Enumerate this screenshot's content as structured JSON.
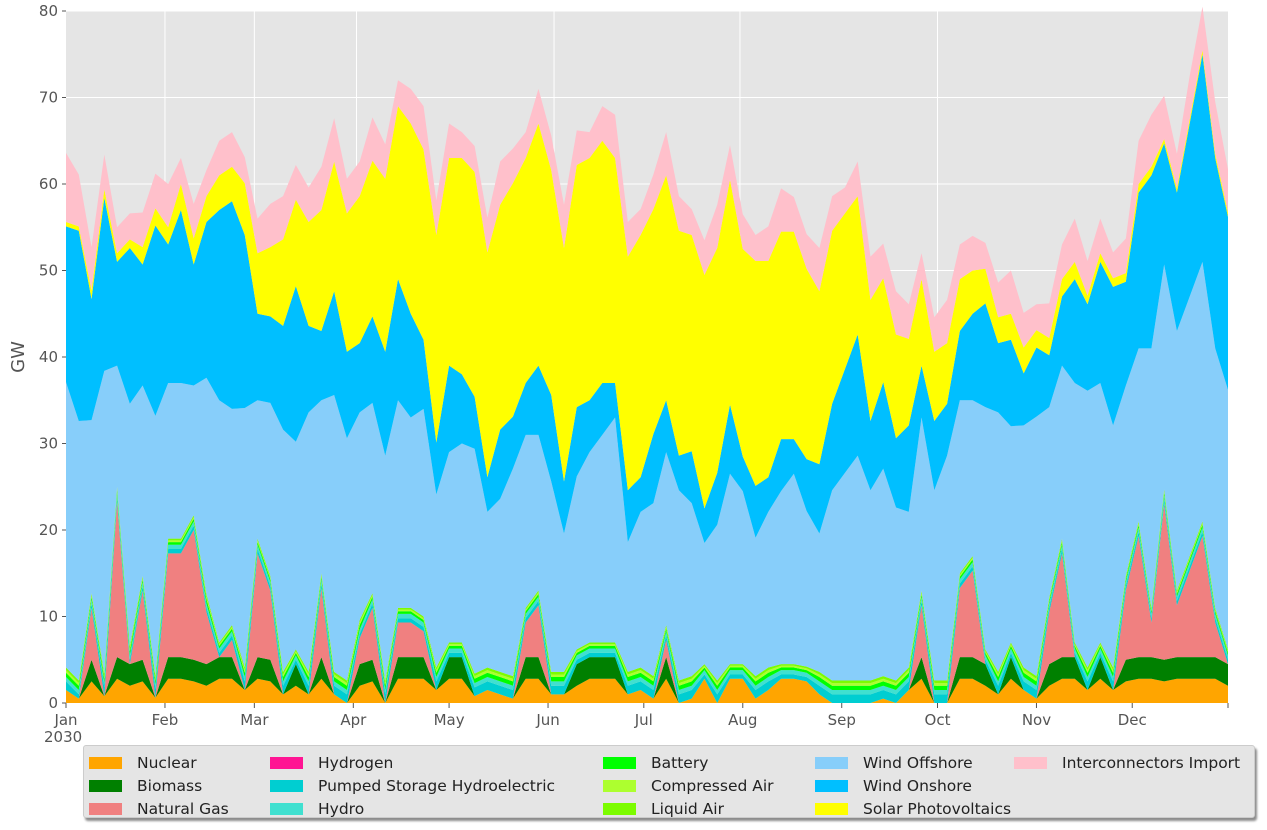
{
  "chart_data": {
    "type": "area",
    "stacked": true,
    "title": "",
    "xlabel": "",
    "ylabel": "GW",
    "ylim": [
      0,
      80
    ],
    "yticks": [
      0,
      10,
      20,
      30,
      40,
      50,
      60,
      70,
      80
    ],
    "x_range": [
      "2030-01-01",
      "2030-12-31"
    ],
    "xtick_labels": [
      "Jan",
      "Feb",
      "Mar",
      "Apr",
      "May",
      "Jun",
      "Jul",
      "Aug",
      "Sep",
      "Oct",
      "Nov",
      "Dec"
    ],
    "year_label": "2030",
    "grid": true,
    "legend_position": "bottom",
    "series": [
      {
        "name": "Nuclear",
        "color": "#ffa500",
        "values": [
          1.5,
          0.5,
          2.5,
          0.8,
          2.8,
          2.0,
          2.5,
          0.6,
          2.8,
          2.8,
          2.5,
          2.0,
          2.8,
          2.8,
          1.5,
          2.8,
          2.5,
          1.0,
          2.0,
          1.0,
          2.8,
          1.0,
          0.0,
          2.0,
          2.5,
          0.0,
          2.8,
          2.8,
          2.8,
          1.5,
          2.8,
          2.8,
          0.8,
          1.5,
          1.0,
          0.5,
          2.8,
          2.8,
          1.0,
          1.0,
          2.0,
          2.8,
          2.8,
          2.8,
          1.0,
          1.5,
          0.5,
          2.8,
          0.0,
          0.5,
          2.8,
          0.0,
          2.8,
          2.8,
          0.5,
          1.5,
          2.8,
          2.8,
          2.5,
          1.0,
          0.0,
          0.0,
          0.0,
          0.0,
          0.5,
          0.0,
          1.5,
          2.8,
          0.0,
          0.0,
          2.8,
          2.8,
          2.0,
          1.0,
          2.8,
          1.5,
          0.5,
          2.0,
          2.8,
          2.8,
          1.5,
          2.8,
          1.5,
          2.5,
          2.8,
          2.8,
          2.5,
          2.8,
          2.8,
          2.8,
          2.8,
          2.0
        ]
      },
      {
        "name": "Biomass",
        "color": "#008000",
        "values": [
          0.0,
          0.0,
          2.5,
          0.0,
          2.5,
          2.5,
          2.5,
          0.0,
          2.5,
          2.5,
          2.5,
          2.5,
          2.5,
          2.5,
          0.0,
          2.5,
          2.5,
          0.0,
          2.5,
          0.0,
          2.5,
          0.0,
          0.0,
          2.5,
          2.5,
          0.0,
          2.5,
          2.5,
          2.5,
          0.0,
          2.5,
          2.5,
          0.0,
          0.0,
          0.0,
          0.0,
          2.5,
          2.5,
          0.0,
          0.0,
          2.5,
          2.5,
          2.5,
          2.5,
          0.0,
          0.0,
          0.0,
          2.5,
          0.0,
          0.0,
          0.0,
          0.0,
          0.0,
          0.0,
          0.0,
          0.0,
          0.0,
          0.0,
          0.0,
          0.0,
          0.0,
          0.0,
          0.0,
          0.0,
          0.0,
          0.0,
          0.0,
          2.5,
          0.0,
          0.0,
          2.5,
          2.5,
          2.5,
          0.0,
          2.5,
          0.0,
          0.0,
          2.5,
          2.5,
          2.5,
          0.0,
          2.5,
          0.0,
          2.5,
          2.5,
          2.5,
          2.5,
          2.5,
          2.5,
          2.5,
          2.5,
          2.5
        ]
      },
      {
        "name": "Natural Gas",
        "color": "#f08080",
        "values": [
          0.0,
          0.0,
          6.0,
          0.0,
          18.0,
          0.0,
          8.0,
          0.0,
          12.0,
          12.0,
          15.0,
          6.0,
          0.0,
          2.0,
          0.0,
          12.0,
          8.0,
          0.0,
          0.0,
          0.0,
          8.0,
          0.0,
          0.0,
          3.0,
          6.0,
          0.0,
          4.0,
          4.0,
          3.0,
          0.0,
          0.0,
          0.0,
          0.0,
          0.0,
          0.0,
          0.0,
          4.0,
          6.0,
          0.0,
          0.0,
          0.0,
          0.0,
          0.0,
          0.0,
          0.0,
          0.0,
          0.0,
          2.0,
          0.0,
          0.0,
          0.0,
          0.0,
          0.0,
          0.0,
          0.0,
          0.0,
          0.0,
          0.0,
          0.0,
          0.0,
          0.0,
          0.0,
          0.0,
          0.0,
          0.0,
          0.0,
          0.0,
          6.0,
          0.0,
          0.0,
          8.0,
          10.0,
          0.0,
          0.0,
          0.0,
          0.0,
          0.0,
          6.0,
          12.0,
          0.0,
          0.0,
          0.0,
          0.0,
          8.0,
          14.0,
          4.0,
          18.0,
          6.0,
          10.0,
          14.0,
          4.0,
          0.0
        ]
      },
      {
        "name": "Hydrogen",
        "color": "#ff1493",
        "values": [
          0.0,
          0.0,
          0.0,
          0.0,
          0.0,
          0.0,
          0.0,
          0.0,
          0.0,
          0.0,
          0.0,
          0.0,
          0.0,
          0.0,
          0.0,
          0.0,
          0.0,
          0.0,
          0.0,
          0.0,
          0.0,
          0.0,
          0.0,
          0.0,
          0.0,
          0.0,
          0.0,
          0.0,
          0.0,
          0.0,
          0.0,
          0.0,
          0.0,
          0.0,
          0.0,
          0.0,
          0.0,
          0.0,
          0.0,
          0.0,
          0.0,
          0.0,
          0.0,
          0.0,
          0.0,
          0.0,
          0.0,
          0.0,
          0.0,
          0.0,
          0.0,
          0.0,
          0.0,
          0.0,
          0.0,
          0.0,
          0.0,
          0.0,
          0.0,
          0.0,
          0.0,
          0.0,
          0.0,
          0.0,
          0.0,
          0.0,
          0.0,
          0.0,
          0.0,
          0.0,
          0.0,
          0.0,
          0.0,
          0.0,
          0.0,
          0.0,
          0.0,
          0.0,
          0.0,
          0.0,
          0.0,
          0.0,
          0.0,
          0.0,
          0.0,
          0.0,
          0.0,
          0.0,
          0.0,
          0.0,
          0.0,
          0.0
        ]
      },
      {
        "name": "Pumped Storage Hydroelectric",
        "color": "#00ced1",
        "values": [
          1.0,
          0.5,
          0.5,
          1.0,
          0.5,
          0.5,
          0.5,
          1.0,
          0.5,
          0.5,
          0.5,
          0.5,
          0.5,
          0.5,
          1.0,
          0.5,
          0.5,
          1.0,
          0.5,
          1.0,
          0.5,
          1.0,
          1.0,
          0.5,
          0.5,
          1.0,
          0.5,
          0.5,
          0.5,
          1.0,
          0.5,
          0.5,
          1.0,
          1.0,
          1.0,
          1.0,
          0.5,
          0.5,
          1.0,
          1.0,
          0.5,
          0.5,
          0.5,
          0.5,
          1.0,
          1.0,
          1.0,
          0.5,
          1.0,
          1.0,
          0.5,
          1.0,
          0.5,
          0.5,
          1.0,
          1.0,
          0.5,
          0.5,
          0.5,
          1.0,
          1.0,
          1.0,
          1.0,
          1.0,
          1.0,
          1.0,
          1.0,
          0.5,
          1.0,
          1.0,
          0.5,
          0.5,
          0.5,
          1.0,
          0.5,
          1.0,
          1.0,
          0.5,
          0.5,
          0.5,
          1.0,
          0.5,
          1.0,
          0.5,
          0.5,
          0.5,
          0.5,
          0.5,
          0.5,
          0.5,
          0.5,
          0.5
        ]
      },
      {
        "name": "Hydro",
        "color": "#40e0d0",
        "values": [
          0.5,
          0.5,
          0.5,
          0.5,
          0.5,
          0.5,
          0.5,
          0.5,
          0.5,
          0.5,
          0.5,
          0.5,
          0.5,
          0.5,
          0.5,
          0.5,
          0.5,
          0.5,
          0.5,
          0.5,
          0.5,
          0.5,
          0.5,
          0.5,
          0.5,
          0.5,
          0.5,
          0.5,
          0.5,
          0.5,
          0.5,
          0.5,
          0.5,
          0.5,
          0.5,
          0.5,
          0.5,
          0.5,
          0.5,
          0.5,
          0.5,
          0.5,
          0.5,
          0.5,
          0.5,
          0.5,
          0.5,
          0.5,
          0.5,
          0.5,
          0.5,
          0.5,
          0.5,
          0.5,
          0.5,
          0.5,
          0.5,
          0.5,
          0.5,
          0.5,
          0.5,
          0.5,
          0.5,
          0.5,
          0.5,
          0.5,
          0.5,
          0.5,
          0.5,
          0.5,
          0.5,
          0.5,
          0.5,
          0.5,
          0.5,
          0.5,
          0.5,
          0.5,
          0.5,
          0.5,
          0.5,
          0.5,
          0.5,
          0.5,
          0.5,
          0.5,
          0.5,
          0.5,
          0.5,
          0.5,
          0.5,
          0.5
        ]
      },
      {
        "name": "Battery",
        "color": "#00ff00",
        "values": [
          0.5,
          0.5,
          0.3,
          0.5,
          0.3,
          0.5,
          0.3,
          0.5,
          0.3,
          0.3,
          0.3,
          0.5,
          0.3,
          0.3,
          0.5,
          0.3,
          0.3,
          0.5,
          0.3,
          0.5,
          0.3,
          0.5,
          0.5,
          0.5,
          0.3,
          0.5,
          0.3,
          0.3,
          0.3,
          0.5,
          0.3,
          0.3,
          0.5,
          0.5,
          0.5,
          0.5,
          0.3,
          0.3,
          0.5,
          0.5,
          0.3,
          0.3,
          0.3,
          0.3,
          0.5,
          0.5,
          0.5,
          0.3,
          0.5,
          0.5,
          0.3,
          0.5,
          0.3,
          0.3,
          0.5,
          0.5,
          0.3,
          0.3,
          0.3,
          0.5,
          0.5,
          0.5,
          0.5,
          0.5,
          0.5,
          0.5,
          0.5,
          0.3,
          0.5,
          0.5,
          0.3,
          0.3,
          0.3,
          0.5,
          0.3,
          0.5,
          0.5,
          0.3,
          0.3,
          0.3,
          0.5,
          0.3,
          0.5,
          0.3,
          0.3,
          0.3,
          0.3,
          0.3,
          0.3,
          0.3,
          0.3,
          0.3
        ]
      },
      {
        "name": "Compressed Air",
        "color": "#adff2f",
        "values": [
          0.3,
          0.3,
          0.2,
          0.3,
          0.2,
          0.3,
          0.2,
          0.3,
          0.2,
          0.2,
          0.2,
          0.3,
          0.2,
          0.2,
          0.3,
          0.2,
          0.2,
          0.3,
          0.2,
          0.3,
          0.2,
          0.3,
          0.3,
          0.3,
          0.2,
          0.3,
          0.2,
          0.2,
          0.2,
          0.3,
          0.2,
          0.2,
          0.3,
          0.3,
          0.3,
          0.3,
          0.2,
          0.2,
          0.3,
          0.3,
          0.2,
          0.2,
          0.2,
          0.2,
          0.3,
          0.3,
          0.3,
          0.2,
          0.3,
          0.3,
          0.2,
          0.3,
          0.2,
          0.2,
          0.3,
          0.3,
          0.2,
          0.2,
          0.2,
          0.3,
          0.3,
          0.3,
          0.3,
          0.3,
          0.3,
          0.3,
          0.3,
          0.2,
          0.3,
          0.3,
          0.2,
          0.2,
          0.2,
          0.3,
          0.2,
          0.3,
          0.3,
          0.2,
          0.2,
          0.2,
          0.3,
          0.2,
          0.3,
          0.2,
          0.2,
          0.2,
          0.2,
          0.2,
          0.2,
          0.2,
          0.2,
          0.2
        ]
      },
      {
        "name": "Liquid Air",
        "color": "#7cfc00",
        "values": [
          0.3,
          0.3,
          0.2,
          0.3,
          0.2,
          0.3,
          0.2,
          0.3,
          0.2,
          0.2,
          0.2,
          0.3,
          0.2,
          0.2,
          0.3,
          0.2,
          0.2,
          0.3,
          0.2,
          0.3,
          0.2,
          0.3,
          0.3,
          0.3,
          0.2,
          0.3,
          0.2,
          0.2,
          0.2,
          0.3,
          0.2,
          0.2,
          0.3,
          0.3,
          0.3,
          0.3,
          0.2,
          0.2,
          0.3,
          0.3,
          0.2,
          0.2,
          0.2,
          0.2,
          0.3,
          0.3,
          0.3,
          0.2,
          0.3,
          0.3,
          0.2,
          0.3,
          0.2,
          0.2,
          0.3,
          0.3,
          0.2,
          0.2,
          0.2,
          0.3,
          0.3,
          0.3,
          0.3,
          0.3,
          0.3,
          0.3,
          0.3,
          0.2,
          0.3,
          0.3,
          0.2,
          0.2,
          0.2,
          0.3,
          0.2,
          0.3,
          0.3,
          0.2,
          0.2,
          0.2,
          0.3,
          0.2,
          0.3,
          0.2,
          0.2,
          0.2,
          0.2,
          0.2,
          0.2,
          0.2,
          0.2,
          0.2
        ]
      },
      {
        "name": "Wind Offshore",
        "color": "#87cefa",
        "values": [
          33,
          30,
          20,
          35,
          14,
          28,
          22,
          30,
          18,
          18,
          15,
          25,
          28,
          25,
          30,
          16,
          20,
          28,
          24,
          30,
          20,
          32,
          28,
          24,
          22,
          26,
          24,
          22,
          24,
          20,
          22,
          23,
          26,
          18,
          20,
          24,
          20,
          18,
          22,
          16,
          20,
          22,
          24,
          26,
          15,
          18,
          20,
          20,
          22,
          20,
          14,
          18,
          22,
          20,
          16,
          18,
          20,
          22,
          18,
          16,
          22,
          24,
          26,
          22,
          24,
          20,
          18,
          20,
          22,
          26,
          20,
          18,
          28,
          30,
          25,
          28,
          30,
          22,
          20,
          30,
          32,
          30,
          28,
          22,
          20,
          30,
          26,
          30,
          30,
          30,
          30,
          30
        ]
      },
      {
        "name": "Wind Onshore",
        "color": "#00bfff",
        "values": [
          18,
          22,
          14,
          20,
          12,
          18,
          14,
          22,
          16,
          20,
          14,
          18,
          22,
          24,
          20,
          10,
          10,
          12,
          18,
          10,
          8,
          12,
          10,
          8,
          10,
          12,
          14,
          12,
          8,
          6,
          10,
          8,
          6,
          4,
          8,
          6,
          6,
          8,
          10,
          6,
          8,
          6,
          6,
          4,
          6,
          4,
          8,
          6,
          4,
          6,
          4,
          6,
          8,
          4,
          6,
          4,
          6,
          4,
          6,
          8,
          10,
          12,
          14,
          8,
          10,
          8,
          10,
          6,
          8,
          6,
          8,
          10,
          12,
          8,
          10,
          6,
          8,
          6,
          8,
          12,
          10,
          14,
          16,
          12,
          18,
          20,
          14,
          16,
          20,
          24,
          22,
          20
        ]
      },
      {
        "name": "Solar Photovoltaics",
        "color": "#ffff00",
        "values": [
          0.5,
          0.5,
          1,
          1,
          1,
          1,
          2,
          2,
          2,
          3,
          3,
          3,
          4,
          4,
          6,
          7,
          8,
          10,
          10,
          12,
          14,
          15,
          16,
          17,
          18,
          20,
          20,
          22,
          22,
          24,
          24,
          25,
          26,
          26,
          26,
          27,
          26,
          28,
          26,
          27,
          28,
          28,
          28,
          26,
          27,
          28,
          26,
          26,
          26,
          25,
          27,
          26,
          26,
          24,
          26,
          25,
          24,
          24,
          22,
          20,
          20,
          18,
          16,
          14,
          12,
          12,
          10,
          10,
          8,
          7,
          6,
          5,
          4,
          3,
          3,
          3,
          2,
          2,
          2,
          2,
          1,
          1,
          1,
          1,
          1,
          1,
          0.5,
          0.5,
          0.5,
          0.5,
          0.5,
          0.5
        ]
      },
      {
        "name": "Interconnectors Import",
        "color": "#ffc0cb",
        "values": [
          8,
          6,
          5,
          4,
          3,
          3,
          4,
          4,
          5,
          3,
          4,
          3,
          4,
          4,
          3,
          4,
          5,
          5,
          4,
          4,
          5,
          5,
          4,
          4,
          5,
          4,
          3,
          4,
          5,
          4,
          4,
          3,
          3,
          4,
          5,
          4,
          3,
          4,
          4,
          5,
          4,
          3,
          4,
          5,
          4,
          3,
          4,
          5,
          4,
          3,
          4,
          5,
          4,
          4,
          3,
          4,
          5,
          4,
          4,
          5,
          4,
          3,
          4,
          5,
          4,
          5,
          4,
          3,
          4,
          5,
          4,
          4,
          3,
          4,
          5,
          4,
          3,
          4,
          4,
          5,
          4,
          4,
          3,
          4,
          5,
          6,
          5,
          4,
          5,
          5,
          6,
          5
        ]
      }
    ]
  }
}
